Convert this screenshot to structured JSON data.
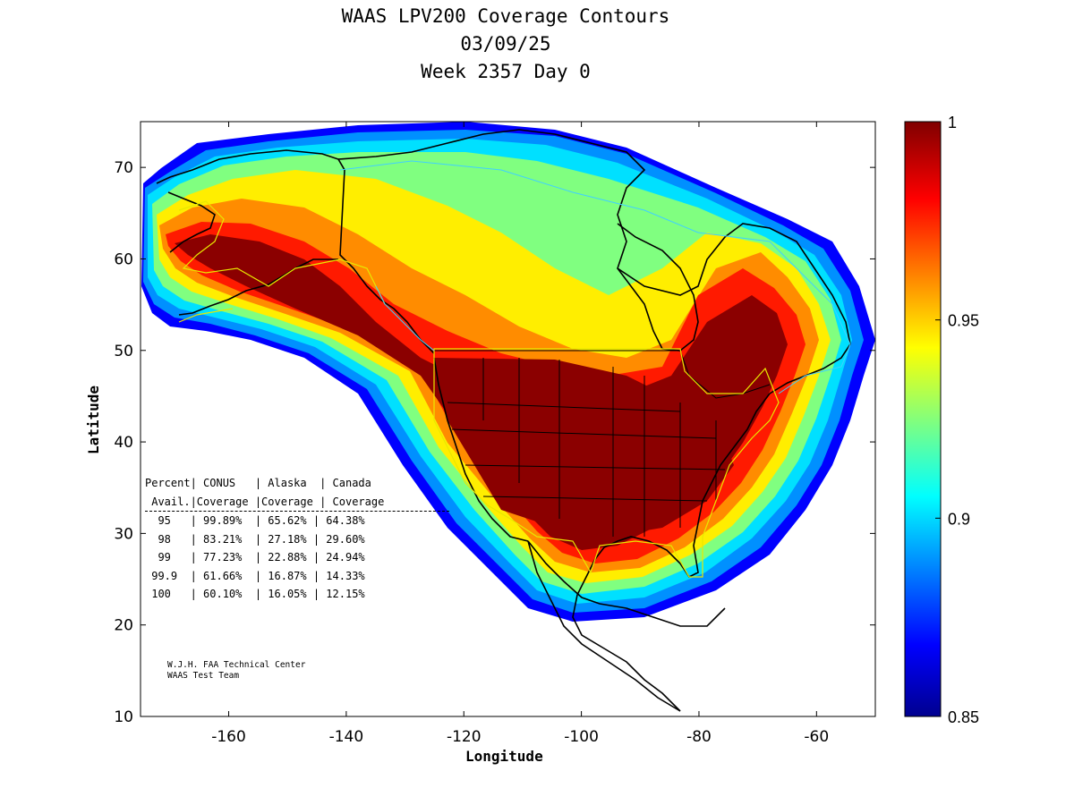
{
  "title": {
    "line1": "WAAS LPV200 Coverage Contours",
    "line2": "03/09/25",
    "line3": "Week 2357 Day 0"
  },
  "axes": {
    "xlabel": "Longitude",
    "ylabel": "Latitude",
    "xlim": [
      -175,
      -50
    ],
    "ylim": [
      10,
      75
    ],
    "xticks": [
      "-160",
      "-140",
      "-120",
      "-100",
      "-80",
      "-60"
    ],
    "xtick_values": [
      -160,
      -140,
      -120,
      -100,
      -80,
      -60
    ],
    "yticks": [
      "10",
      "20",
      "30",
      "40",
      "50",
      "60",
      "70"
    ],
    "ytick_values": [
      10,
      20,
      30,
      40,
      50,
      60,
      70
    ]
  },
  "colorbar": {
    "ticks": [
      "1",
      "0.95",
      "0.9",
      "0.85"
    ],
    "tick_values": [
      1.0,
      0.95,
      0.9,
      0.85
    ],
    "range": [
      0.85,
      1.0
    ],
    "colormap": [
      "#00008f",
      "#0000ff",
      "#00ffff",
      "#ffff00",
      "#ff0000",
      "#800000"
    ]
  },
  "stats_table": {
    "header1": "Percent| CONUS   | Alaska  | Canada",
    "header2": " Avail.|Coverage |Coverage | Coverage",
    "rows": [
      "  95   | 99.89%  | 65.62% | 64.38%",
      "  98   | 83.21%  | 27.18% | 29.60%",
      "  99   | 77.23%  | 22.88% | 24.94%",
      " 99.9  | 61.66%  | 16.87% | 14.33%",
      " 100   | 60.10%  | 16.05% | 12.15%"
    ]
  },
  "credit": {
    "line1": "W.J.H. FAA Technical Center",
    "line2": "WAAS Test Team"
  },
  "chart_data": {
    "type": "heatmap",
    "title": "WAAS LPV200 Coverage Contours",
    "xlabel": "Longitude",
    "ylabel": "Latitude",
    "xlim": [
      -175,
      -50
    ],
    "ylim": [
      10,
      75
    ],
    "value_range": [
      0.85,
      1.0
    ],
    "regions": [
      {
        "name": "CONUS",
        "availability": 0.99
      },
      {
        "name": "Alaska",
        "availability": 0.98
      },
      {
        "name": "Canada",
        "availability": 0.95
      }
    ]
  }
}
